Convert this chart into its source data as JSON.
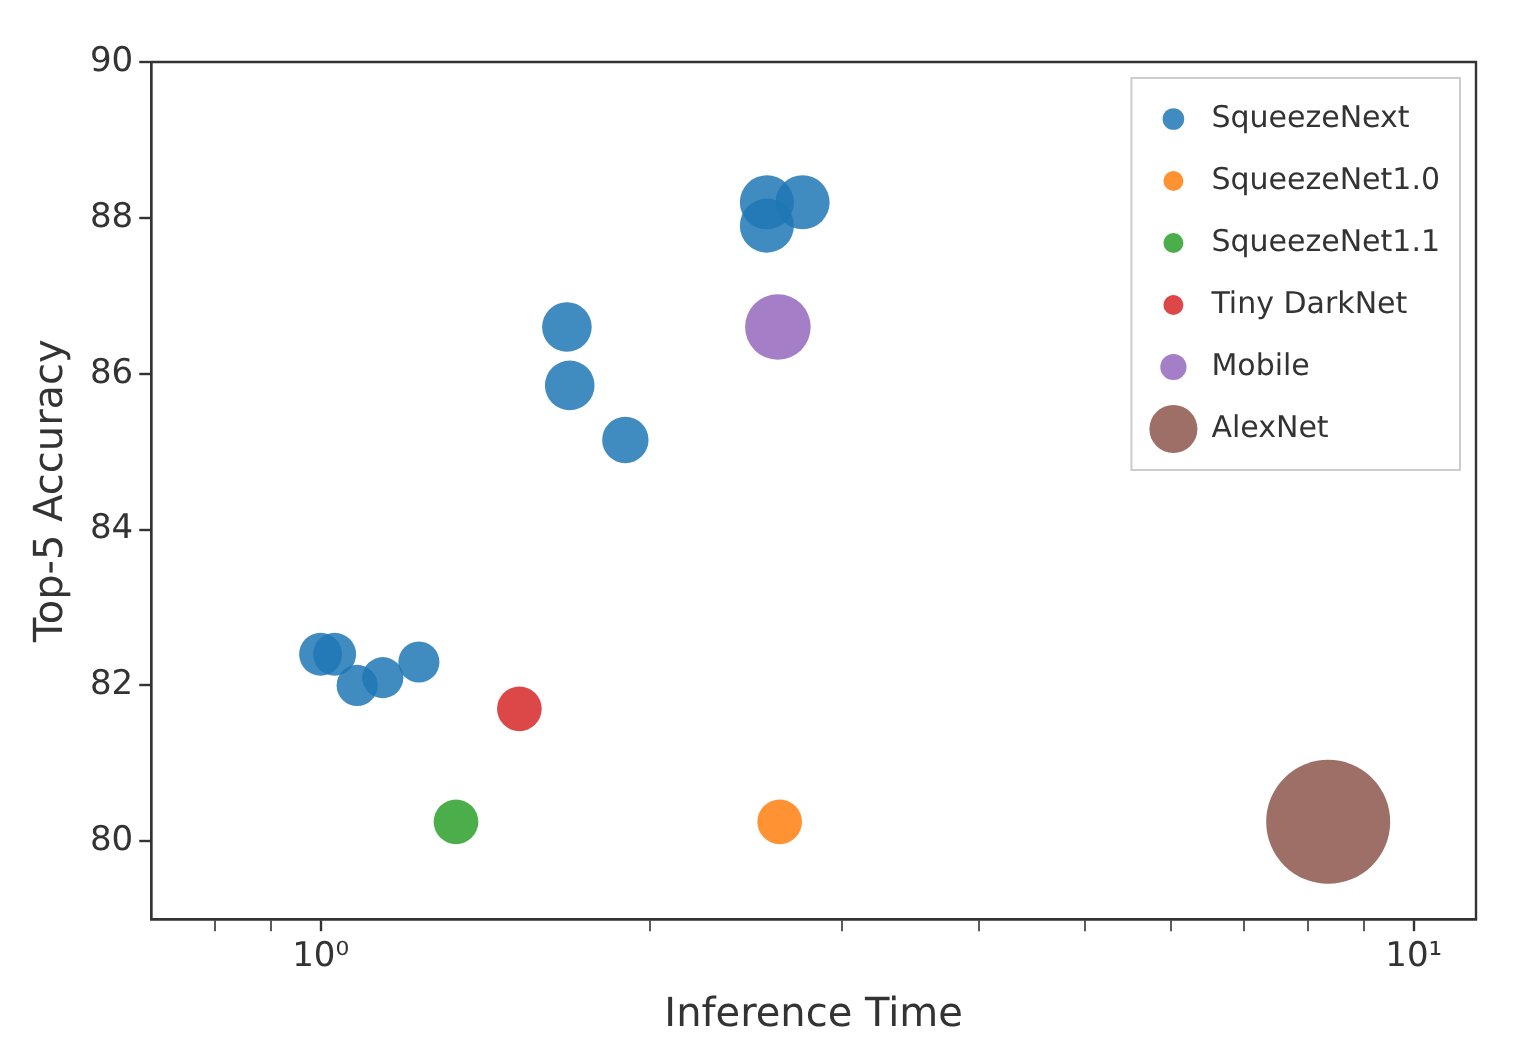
{
  "chart_data": {
    "type": "bubble",
    "xlabel": "Inference Time",
    "ylabel": "Top-5 Accuracy",
    "log": "x",
    "grid": false,
    "legend": "top right",
    "marker": "circle",
    "xlim": [
      0.71,
      11.4
    ],
    "ylim": [
      79,
      90
    ],
    "xticks": [
      {
        "value": 0.8,
        "label": null
      },
      {
        "value": 0.9,
        "label": null
      },
      {
        "value": 1,
        "label": "10⁰"
      },
      {
        "value": 2,
        "label": null
      },
      {
        "value": 3,
        "label": null
      },
      {
        "value": 4,
        "label": null
      },
      {
        "value": 5,
        "label": null
      },
      {
        "value": 6,
        "label": null
      },
      {
        "value": 7,
        "label": null
      },
      {
        "value": 8,
        "label": null
      },
      {
        "value": 9,
        "label": null
      },
      {
        "value": 10,
        "label": "10¹"
      }
    ],
    "yticks": [
      80,
      82,
      84,
      86,
      88,
      90
    ],
    "series": [
      {
        "name": "SqueezeNext",
        "color": "#1f77b4",
        "x": [
          2.56,
          2.76,
          2.56,
          1.68,
          1.69,
          1.9,
          1.0,
          1.03,
          1.08,
          1.14,
          1.23
        ],
        "values": [
          88.2,
          88.2,
          87.9,
          86.6,
          85.85,
          85.15,
          82.4,
          82.4,
          82.0,
          82.1,
          82.3
        ],
        "sizes": [
          0.19,
          0.19,
          0.19,
          0.16,
          0.16,
          0.14,
          0.12,
          0.12,
          0.11,
          0.11,
          0.11
        ]
      },
      {
        "name": "SqueezeNet1.0",
        "color": "#ff7f0e",
        "x": [
          2.63
        ],
        "values": [
          80.25
        ],
        "sizes": [
          0.13
        ]
      },
      {
        "name": "SqueezeNet1.1",
        "color": "#2ca02c",
        "x": [
          1.33
        ],
        "values": [
          80.25
        ],
        "sizes": [
          0.13
        ]
      },
      {
        "name": "Tiny DarkNet",
        "color": "#d62728",
        "x": [
          1.52
        ],
        "values": [
          81.7
        ],
        "sizes": [
          0.13
        ]
      },
      {
        "name": "Mobile",
        "color": "#9467bd",
        "x": [
          2.62
        ],
        "values": [
          86.6
        ],
        "sizes": [
          0.28
        ]
      },
      {
        "name": "AlexNet",
        "color": "#8c564b",
        "x": [
          8.35
        ],
        "values": [
          80.25
        ],
        "sizes": [
          1
        ]
      }
    ]
  }
}
